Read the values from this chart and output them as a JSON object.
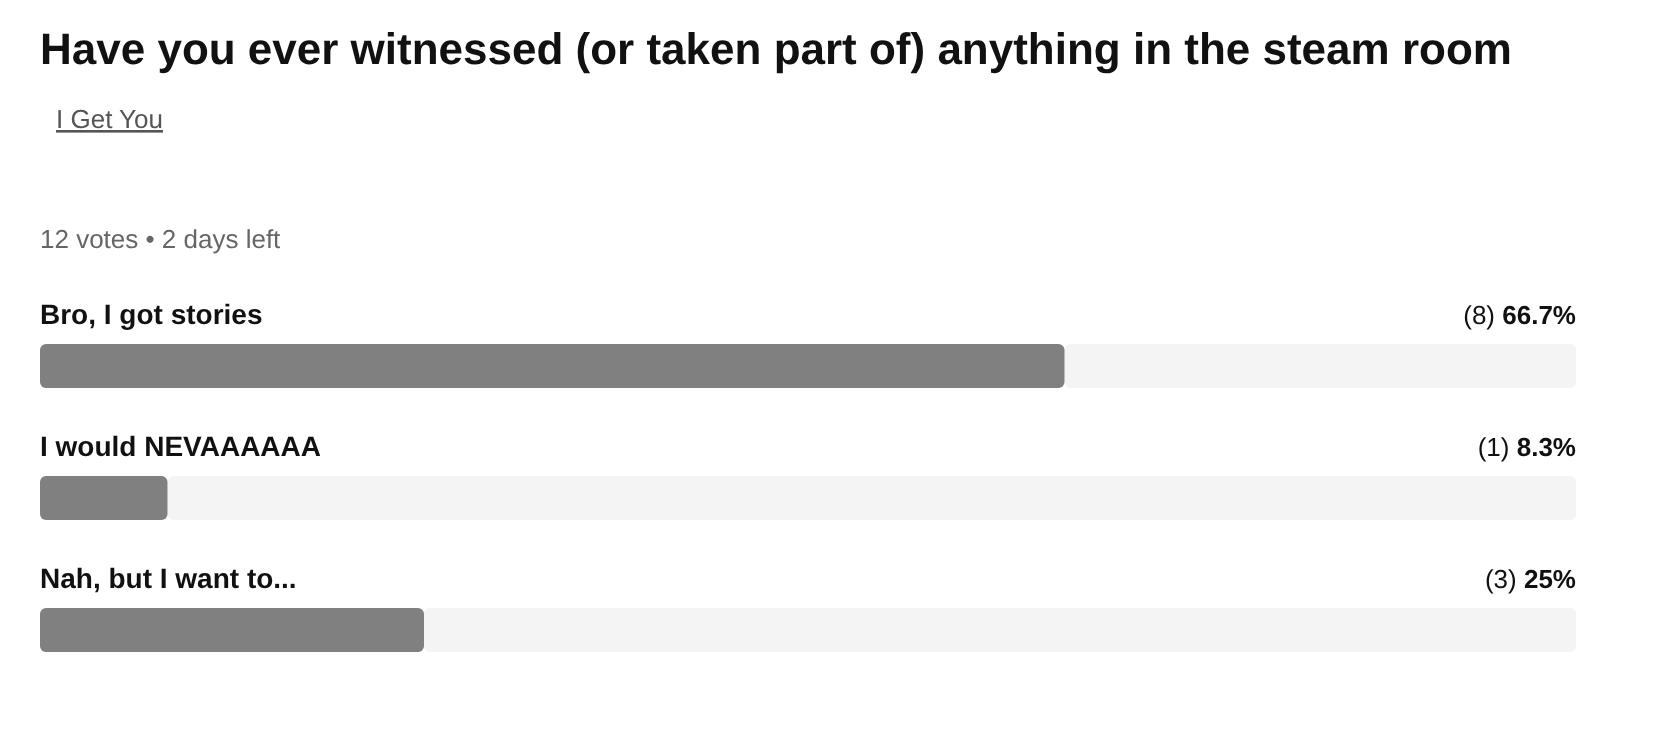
{
  "chart_data": {
    "type": "bar",
    "orientation": "horizontal",
    "title": "Have you ever witnessed (or taken part of) anything in the steam room",
    "subtitle": "I Get You",
    "annotations": [
      "12 votes • 2 days left"
    ],
    "categories": [
      "Bro, I got stories",
      "I would NEVAAAAAA",
      "Nah, but I want to..."
    ],
    "values": [
      66.7,
      8.3,
      25
    ],
    "value_labels": [
      "(8) 66.7%",
      "(1) 8.3%",
      "(3) 25%"
    ],
    "color": "#808080",
    "xlim": [
      0,
      100
    ],
    "tick_labels": false
  }
}
